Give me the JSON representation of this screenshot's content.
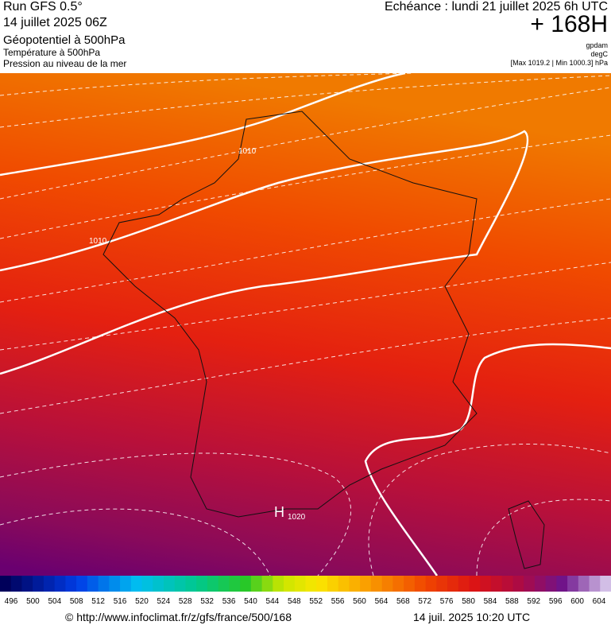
{
  "header": {
    "run": "Run GFS 0.5°",
    "date": "14 juillet 2025 06Z",
    "field1": "Géopotentiel à 500hPa",
    "field2": "Température à 500hPa",
    "field3": "Pression au niveau de la mer",
    "echeance": "Echéance : lundi 21 juillet 2025 6h UTC",
    "lead": "+ 168H",
    "unit1": "gpdam",
    "unit2": "degC",
    "range": "[Max 1019.2 | Min 1000.3] hPa"
  },
  "map": {
    "labels": [
      "1010",
      "1010"
    ],
    "high": "H",
    "high_value": "1020"
  },
  "colorbar": {
    "labels": [
      496,
      500,
      504,
      508,
      512,
      516,
      520,
      524,
      528,
      532,
      536,
      540,
      544,
      548,
      552,
      556,
      560,
      564,
      568,
      572,
      576,
      580,
      584,
      588,
      592,
      596,
      600,
      604
    ]
  },
  "footer": {
    "url": "© http://www.infoclimat.fr/z/gfs/france/500/168",
    "time": "14 juil. 2025 10:20 UTC"
  }
}
